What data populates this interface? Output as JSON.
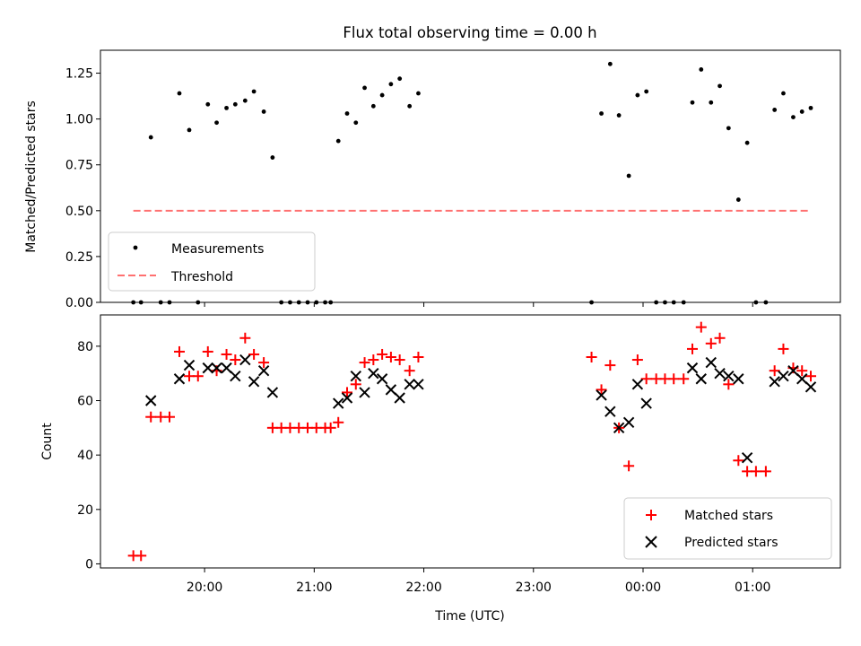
{
  "chart_data": [
    {
      "type": "scatter",
      "title": "Flux total observing time = 0.00 h",
      "xlabel": "",
      "ylabel": "Matched/Predicted stars",
      "xlim": [
        19.05,
        25.8
      ],
      "ylim": [
        0.0,
        1.375
      ],
      "yticks": [
        0.0,
        0.25,
        0.5,
        0.75,
        1.0,
        1.25
      ],
      "ytick_labels": [
        "0.00",
        "0.25",
        "0.50",
        "0.75",
        "1.00",
        "1.25"
      ],
      "legend_position": "lower-left",
      "series": [
        {
          "name": "Measurements",
          "marker": "dot",
          "color": "#000000",
          "points": [
            [
              19.35,
              0.0
            ],
            [
              19.42,
              0.0
            ],
            [
              19.51,
              0.9
            ],
            [
              19.6,
              0.0
            ],
            [
              19.68,
              0.0
            ],
            [
              19.77,
              1.14
            ],
            [
              19.86,
              0.94
            ],
            [
              19.94,
              0.0
            ],
            [
              20.03,
              1.08
            ],
            [
              20.11,
              0.98
            ],
            [
              20.2,
              1.06
            ],
            [
              20.28,
              1.08
            ],
            [
              20.37,
              1.1
            ],
            [
              20.45,
              1.15
            ],
            [
              20.54,
              1.04
            ],
            [
              20.62,
              0.79
            ],
            [
              20.7,
              0.0
            ],
            [
              20.78,
              0.0
            ],
            [
              20.86,
              0.0
            ],
            [
              20.94,
              0.0
            ],
            [
              21.02,
              0.0
            ],
            [
              21.1,
              0.0
            ],
            [
              21.15,
              0.0
            ],
            [
              21.22,
              0.88
            ],
            [
              21.3,
              1.03
            ],
            [
              21.38,
              0.98
            ],
            [
              21.46,
              1.17
            ],
            [
              21.54,
              1.07
            ],
            [
              21.62,
              1.13
            ],
            [
              21.7,
              1.19
            ],
            [
              21.78,
              1.22
            ],
            [
              21.87,
              1.07
            ],
            [
              21.95,
              1.14
            ],
            [
              23.53,
              0.0
            ],
            [
              23.62,
              1.03
            ],
            [
              23.7,
              1.3
            ],
            [
              23.78,
              1.02
            ],
            [
              23.87,
              0.69
            ],
            [
              23.95,
              1.13
            ],
            [
              24.03,
              1.15
            ],
            [
              24.12,
              0.0
            ],
            [
              24.2,
              0.0
            ],
            [
              24.28,
              0.0
            ],
            [
              24.37,
              0.0
            ],
            [
              24.45,
              1.09
            ],
            [
              24.53,
              1.27
            ],
            [
              24.62,
              1.09
            ],
            [
              24.7,
              1.18
            ],
            [
              24.78,
              0.95
            ],
            [
              24.87,
              0.56
            ],
            [
              24.95,
              0.87
            ],
            [
              25.03,
              0.0
            ],
            [
              25.12,
              0.0
            ],
            [
              25.2,
              1.05
            ],
            [
              25.28,
              1.14
            ],
            [
              25.37,
              1.01
            ],
            [
              25.45,
              1.04
            ],
            [
              25.53,
              1.06
            ]
          ]
        },
        {
          "name": "Threshold",
          "marker": "dashed-line",
          "color": "#ff7070",
          "points": [
            [
              19.35,
              0.5
            ],
            [
              25.53,
              0.5
            ]
          ]
        }
      ]
    },
    {
      "type": "scatter",
      "title": "",
      "xlabel": "Time (UTC)",
      "ylabel": "Count",
      "xlim": [
        19.05,
        25.8
      ],
      "ylim": [
        -1.5,
        91.5
      ],
      "yticks": [
        0,
        20,
        40,
        60,
        80
      ],
      "ytick_labels": [
        "0",
        "20",
        "40",
        "60",
        "80"
      ],
      "xticks": [
        20,
        21,
        22,
        23,
        24,
        25
      ],
      "xtick_labels": [
        "20:00",
        "21:00",
        "22:00",
        "23:00",
        "00:00",
        "01:00"
      ],
      "legend_position": "lower-right",
      "series": [
        {
          "name": "Matched stars",
          "marker": "plus",
          "color": "#ff0000",
          "points": [
            [
              19.35,
              3
            ],
            [
              19.42,
              3
            ],
            [
              19.51,
              54
            ],
            [
              19.6,
              54
            ],
            [
              19.68,
              54
            ],
            [
              19.77,
              78
            ],
            [
              19.86,
              69
            ],
            [
              19.94,
              69
            ],
            [
              20.03,
              78
            ],
            [
              20.11,
              71
            ],
            [
              20.2,
              77
            ],
            [
              20.28,
              75
            ],
            [
              20.37,
              83
            ],
            [
              20.45,
              77
            ],
            [
              20.54,
              74
            ],
            [
              20.62,
              50
            ],
            [
              20.7,
              50
            ],
            [
              20.78,
              50
            ],
            [
              20.86,
              50
            ],
            [
              20.94,
              50
            ],
            [
              21.02,
              50
            ],
            [
              21.1,
              50
            ],
            [
              21.15,
              50
            ],
            [
              21.22,
              52
            ],
            [
              21.3,
              63
            ],
            [
              21.38,
              66
            ],
            [
              21.46,
              74
            ],
            [
              21.54,
              75
            ],
            [
              21.62,
              77
            ],
            [
              21.7,
              76
            ],
            [
              21.78,
              75
            ],
            [
              21.87,
              71
            ],
            [
              21.95,
              76
            ],
            [
              23.53,
              76
            ],
            [
              23.62,
              64
            ],
            [
              23.7,
              73
            ],
            [
              23.78,
              50
            ],
            [
              23.87,
              36
            ],
            [
              23.95,
              75
            ],
            [
              24.03,
              68
            ],
            [
              24.12,
              68
            ],
            [
              24.2,
              68
            ],
            [
              24.28,
              68
            ],
            [
              24.37,
              68
            ],
            [
              24.45,
              79
            ],
            [
              24.53,
              87
            ],
            [
              24.62,
              81
            ],
            [
              24.7,
              83
            ],
            [
              24.78,
              66
            ],
            [
              24.87,
              38
            ],
            [
              24.95,
              34
            ],
            [
              25.03,
              34
            ],
            [
              25.12,
              34
            ],
            [
              25.2,
              71
            ],
            [
              25.28,
              79
            ],
            [
              25.37,
              72
            ],
            [
              25.45,
              71
            ],
            [
              25.53,
              69
            ]
          ]
        },
        {
          "name": "Predicted stars",
          "marker": "x",
          "color": "#000000",
          "points": [
            [
              19.51,
              60
            ],
            [
              19.77,
              68
            ],
            [
              19.86,
              73
            ],
            [
              20.03,
              72
            ],
            [
              20.11,
              72
            ],
            [
              20.2,
              72
            ],
            [
              20.28,
              69
            ],
            [
              20.37,
              75
            ],
            [
              20.45,
              67
            ],
            [
              20.54,
              71
            ],
            [
              20.62,
              63
            ],
            [
              21.22,
              59
            ],
            [
              21.3,
              61
            ],
            [
              21.38,
              69
            ],
            [
              21.46,
              63
            ],
            [
              21.54,
              70
            ],
            [
              21.62,
              68
            ],
            [
              21.7,
              64
            ],
            [
              21.78,
              61
            ],
            [
              21.87,
              66
            ],
            [
              21.95,
              66
            ],
            [
              23.62,
              62
            ],
            [
              23.7,
              56
            ],
            [
              23.78,
              50
            ],
            [
              23.87,
              52
            ],
            [
              23.95,
              66
            ],
            [
              24.03,
              59
            ],
            [
              24.45,
              72
            ],
            [
              24.53,
              68
            ],
            [
              24.62,
              74
            ],
            [
              24.7,
              70
            ],
            [
              24.78,
              69
            ],
            [
              24.87,
              68
            ],
            [
              24.95,
              39
            ],
            [
              25.2,
              67
            ],
            [
              25.28,
              69
            ],
            [
              25.37,
              71
            ],
            [
              25.45,
              68
            ],
            [
              25.53,
              65
            ]
          ]
        }
      ]
    }
  ]
}
